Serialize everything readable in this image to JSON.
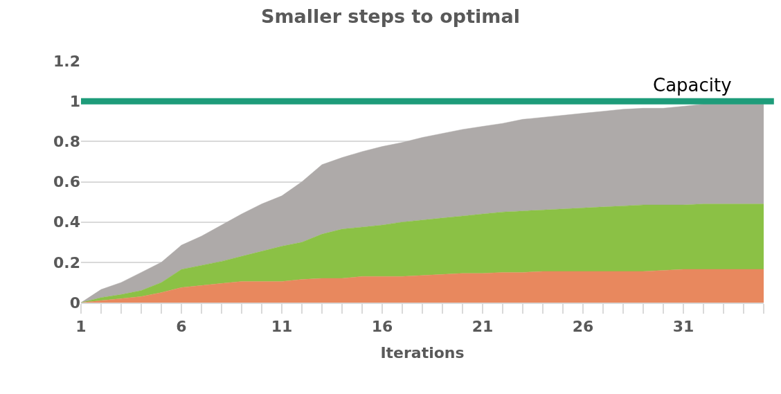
{
  "chart_data": {
    "type": "area",
    "stacked": true,
    "title": "Smaller steps to optimal",
    "xlabel": "Iterations",
    "x": [
      1,
      2,
      3,
      4,
      5,
      6,
      7,
      8,
      9,
      10,
      11,
      12,
      13,
      14,
      15,
      16,
      17,
      18,
      19,
      20,
      21,
      22,
      23,
      24,
      25,
      26,
      27,
      28,
      29,
      30,
      31,
      32,
      33,
      34,
      35
    ],
    "series": [
      {
        "color": "#e8885e",
        "values": [
          0,
          0.01,
          0.02,
          0.03,
          0.05,
          0.075,
          0.085,
          0.095,
          0.105,
          0.105,
          0.105,
          0.115,
          0.12,
          0.12,
          0.13,
          0.13,
          0.13,
          0.135,
          0.14,
          0.145,
          0.145,
          0.15,
          0.15,
          0.155,
          0.155,
          0.155,
          0.155,
          0.155,
          0.155,
          0.16,
          0.165,
          0.165,
          0.165,
          0.165,
          0.165
        ]
      },
      {
        "color": "#8bc145",
        "values": [
          0,
          0.015,
          0.02,
          0.03,
          0.05,
          0.09,
          0.1,
          0.11,
          0.125,
          0.15,
          0.175,
          0.185,
          0.22,
          0.245,
          0.245,
          0.255,
          0.27,
          0.275,
          0.28,
          0.285,
          0.295,
          0.3,
          0.305,
          0.305,
          0.31,
          0.315,
          0.32,
          0.325,
          0.33,
          0.325,
          0.32,
          0.325,
          0.325,
          0.325,
          0.325
        ]
      },
      {
        "color": "#aeaaa9",
        "values": [
          0,
          0.04,
          0.06,
          0.09,
          0.1,
          0.12,
          0.145,
          0.18,
          0.21,
          0.235,
          0.25,
          0.3,
          0.345,
          0.355,
          0.375,
          0.39,
          0.395,
          0.41,
          0.42,
          0.43,
          0.435,
          0.44,
          0.455,
          0.46,
          0.465,
          0.47,
          0.475,
          0.48,
          0.48,
          0.48,
          0.49,
          0.495,
          0.495,
          0.495,
          0.495
        ]
      }
    ],
    "xlim": [
      1,
      35
    ],
    "xticks": [
      1,
      6,
      11,
      16,
      21,
      26,
      31
    ],
    "ylim": [
      0,
      1.2
    ],
    "yticks": [
      0,
      0.2,
      0.4,
      0.6,
      0.8,
      1,
      1.2
    ],
    "ref_lines": [
      {
        "axis": "y",
        "value": 1,
        "label": "Capacity",
        "color": "#1e9c7a"
      }
    ],
    "grid": "y"
  }
}
